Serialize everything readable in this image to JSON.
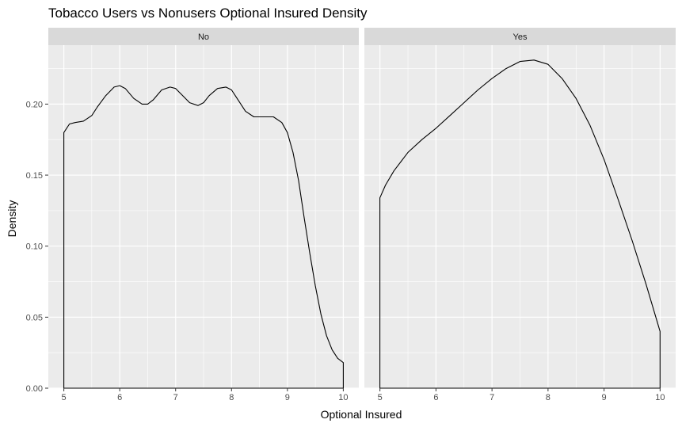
{
  "chart_data": {
    "type": "area",
    "title": "Tobacco Users vs Nonusers Optional Insured Density",
    "xlabel": "Optional Insured",
    "ylabel": "Density",
    "xlim": [
      5,
      10
    ],
    "ylim": [
      0,
      0.2415
    ],
    "x_ticks": [
      5,
      6,
      7,
      8,
      9,
      10
    ],
    "y_ticks": [
      0.0,
      0.05,
      0.1,
      0.15,
      0.2
    ],
    "y_tick_labels": [
      "0.00",
      "0.05",
      "0.10",
      "0.15",
      "0.20"
    ],
    "grid": true,
    "legend": "none",
    "colors": {
      "panel_bg": "#ebebeb",
      "strip_bg": "#d9d9d9",
      "grid": "#ffffff",
      "line": "#000000"
    },
    "facets": [
      {
        "label": "No",
        "x": [
          5.0,
          5.1,
          5.2,
          5.35,
          5.5,
          5.6,
          5.75,
          5.9,
          6.0,
          6.1,
          6.25,
          6.4,
          6.5,
          6.6,
          6.75,
          6.9,
          7.0,
          7.1,
          7.25,
          7.4,
          7.5,
          7.6,
          7.75,
          7.9,
          8.0,
          8.1,
          8.25,
          8.4,
          8.5,
          8.6,
          8.75,
          8.9,
          9.0,
          9.1,
          9.2,
          9.3,
          9.4,
          9.5,
          9.6,
          9.7,
          9.8,
          9.9,
          10.0
        ],
        "y": [
          0.18,
          0.186,
          0.187,
          0.188,
          0.192,
          0.198,
          0.206,
          0.212,
          0.213,
          0.211,
          0.204,
          0.2,
          0.2,
          0.203,
          0.21,
          0.212,
          0.211,
          0.207,
          0.201,
          0.199,
          0.201,
          0.206,
          0.211,
          0.212,
          0.21,
          0.204,
          0.195,
          0.191,
          0.191,
          0.191,
          0.191,
          0.187,
          0.18,
          0.166,
          0.146,
          0.12,
          0.095,
          0.072,
          0.052,
          0.037,
          0.027,
          0.021,
          0.018
        ]
      },
      {
        "label": "Yes",
        "x": [
          5.0,
          5.1,
          5.25,
          5.5,
          5.75,
          6.0,
          6.25,
          6.5,
          6.75,
          7.0,
          7.25,
          7.5,
          7.75,
          8.0,
          8.25,
          8.5,
          8.75,
          9.0,
          9.25,
          9.5,
          9.75,
          10.0
        ],
        "y": [
          0.134,
          0.143,
          0.153,
          0.166,
          0.175,
          0.183,
          0.192,
          0.201,
          0.21,
          0.218,
          0.225,
          0.23,
          0.231,
          0.228,
          0.218,
          0.204,
          0.185,
          0.161,
          0.133,
          0.104,
          0.073,
          0.04
        ]
      }
    ]
  }
}
